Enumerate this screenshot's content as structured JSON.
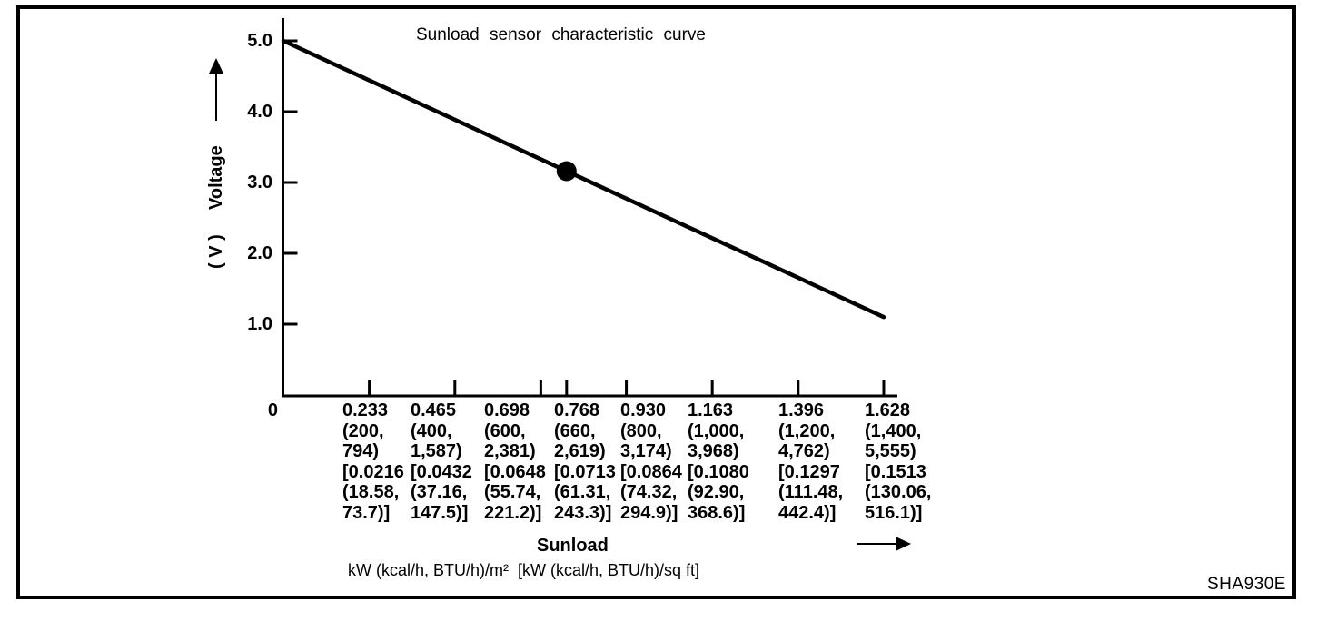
{
  "figure": {
    "code": "SHA930E"
  },
  "chart_data": {
    "type": "line",
    "title": "Sunload sensor characteristic curve",
    "ylabel": "Voltage",
    "ylabel_unit": "( V )",
    "xlabel": "Sunload",
    "x_unit_line": "kW (kcal/h, BTU/h)/m²  [kW (kcal/h, BTU/h)/sq ft]",
    "x_origin_label": "0",
    "ylim": [
      0,
      5.0
    ],
    "xlim": [
      0,
      1.628
    ],
    "grid": false,
    "legend": "none",
    "y_tick_values": [
      5.0,
      4.0,
      3.0,
      2.0,
      1.0
    ],
    "y_tick_labels": [
      "5.0",
      "4.0",
      "3.0",
      "2.0",
      "1.0"
    ],
    "x_ticks": [
      {
        "value": 0.233,
        "label_lines": [
          "0.233",
          "(200,",
          "794)",
          "[0.0216",
          "(18.58,",
          "73.7)]"
        ]
      },
      {
        "value": 0.465,
        "label_lines": [
          "0.465",
          "(400,",
          "1,587)",
          "[0.0432",
          "(37.16,",
          "147.5)]"
        ]
      },
      {
        "value": 0.698,
        "label_lines": [
          "0.698",
          "(600,",
          "2,381)",
          "[0.0648",
          "(55.74,",
          "221.2)]"
        ]
      },
      {
        "value": 0.768,
        "label_lines": [
          "0.768",
          "(660,",
          "2,619)",
          "[0.0713",
          "(61.31,",
          "243.3)]"
        ]
      },
      {
        "value": 0.93,
        "label_lines": [
          "0.930",
          "(800,",
          "3,174)",
          "[0.0864",
          "(74.32,",
          "294.9)]"
        ]
      },
      {
        "value": 1.163,
        "label_lines": [
          "1.163",
          "(1,000,",
          "3,968)",
          "[0.1080",
          "(92.90,",
          "368.6)]"
        ]
      },
      {
        "value": 1.396,
        "label_lines": [
          "1.396",
          "(1,200,",
          "4,762)",
          "[0.1297",
          "(111.48,",
          "442.4)]"
        ]
      },
      {
        "value": 1.628,
        "label_lines": [
          "1.628",
          "(1,400,",
          "5,555)",
          "[0.1513",
          "(130.06,",
          "516.1)]"
        ]
      }
    ],
    "series": [
      {
        "name": "sunload-sensor-characteristic",
        "x": [
          0,
          1.628
        ],
        "y": [
          5.0,
          1.1
        ]
      }
    ],
    "marked_point": {
      "x": 0.768,
      "on_line": true
    },
    "colors": {
      "ink": "#000000",
      "background": "#ffffff"
    }
  }
}
